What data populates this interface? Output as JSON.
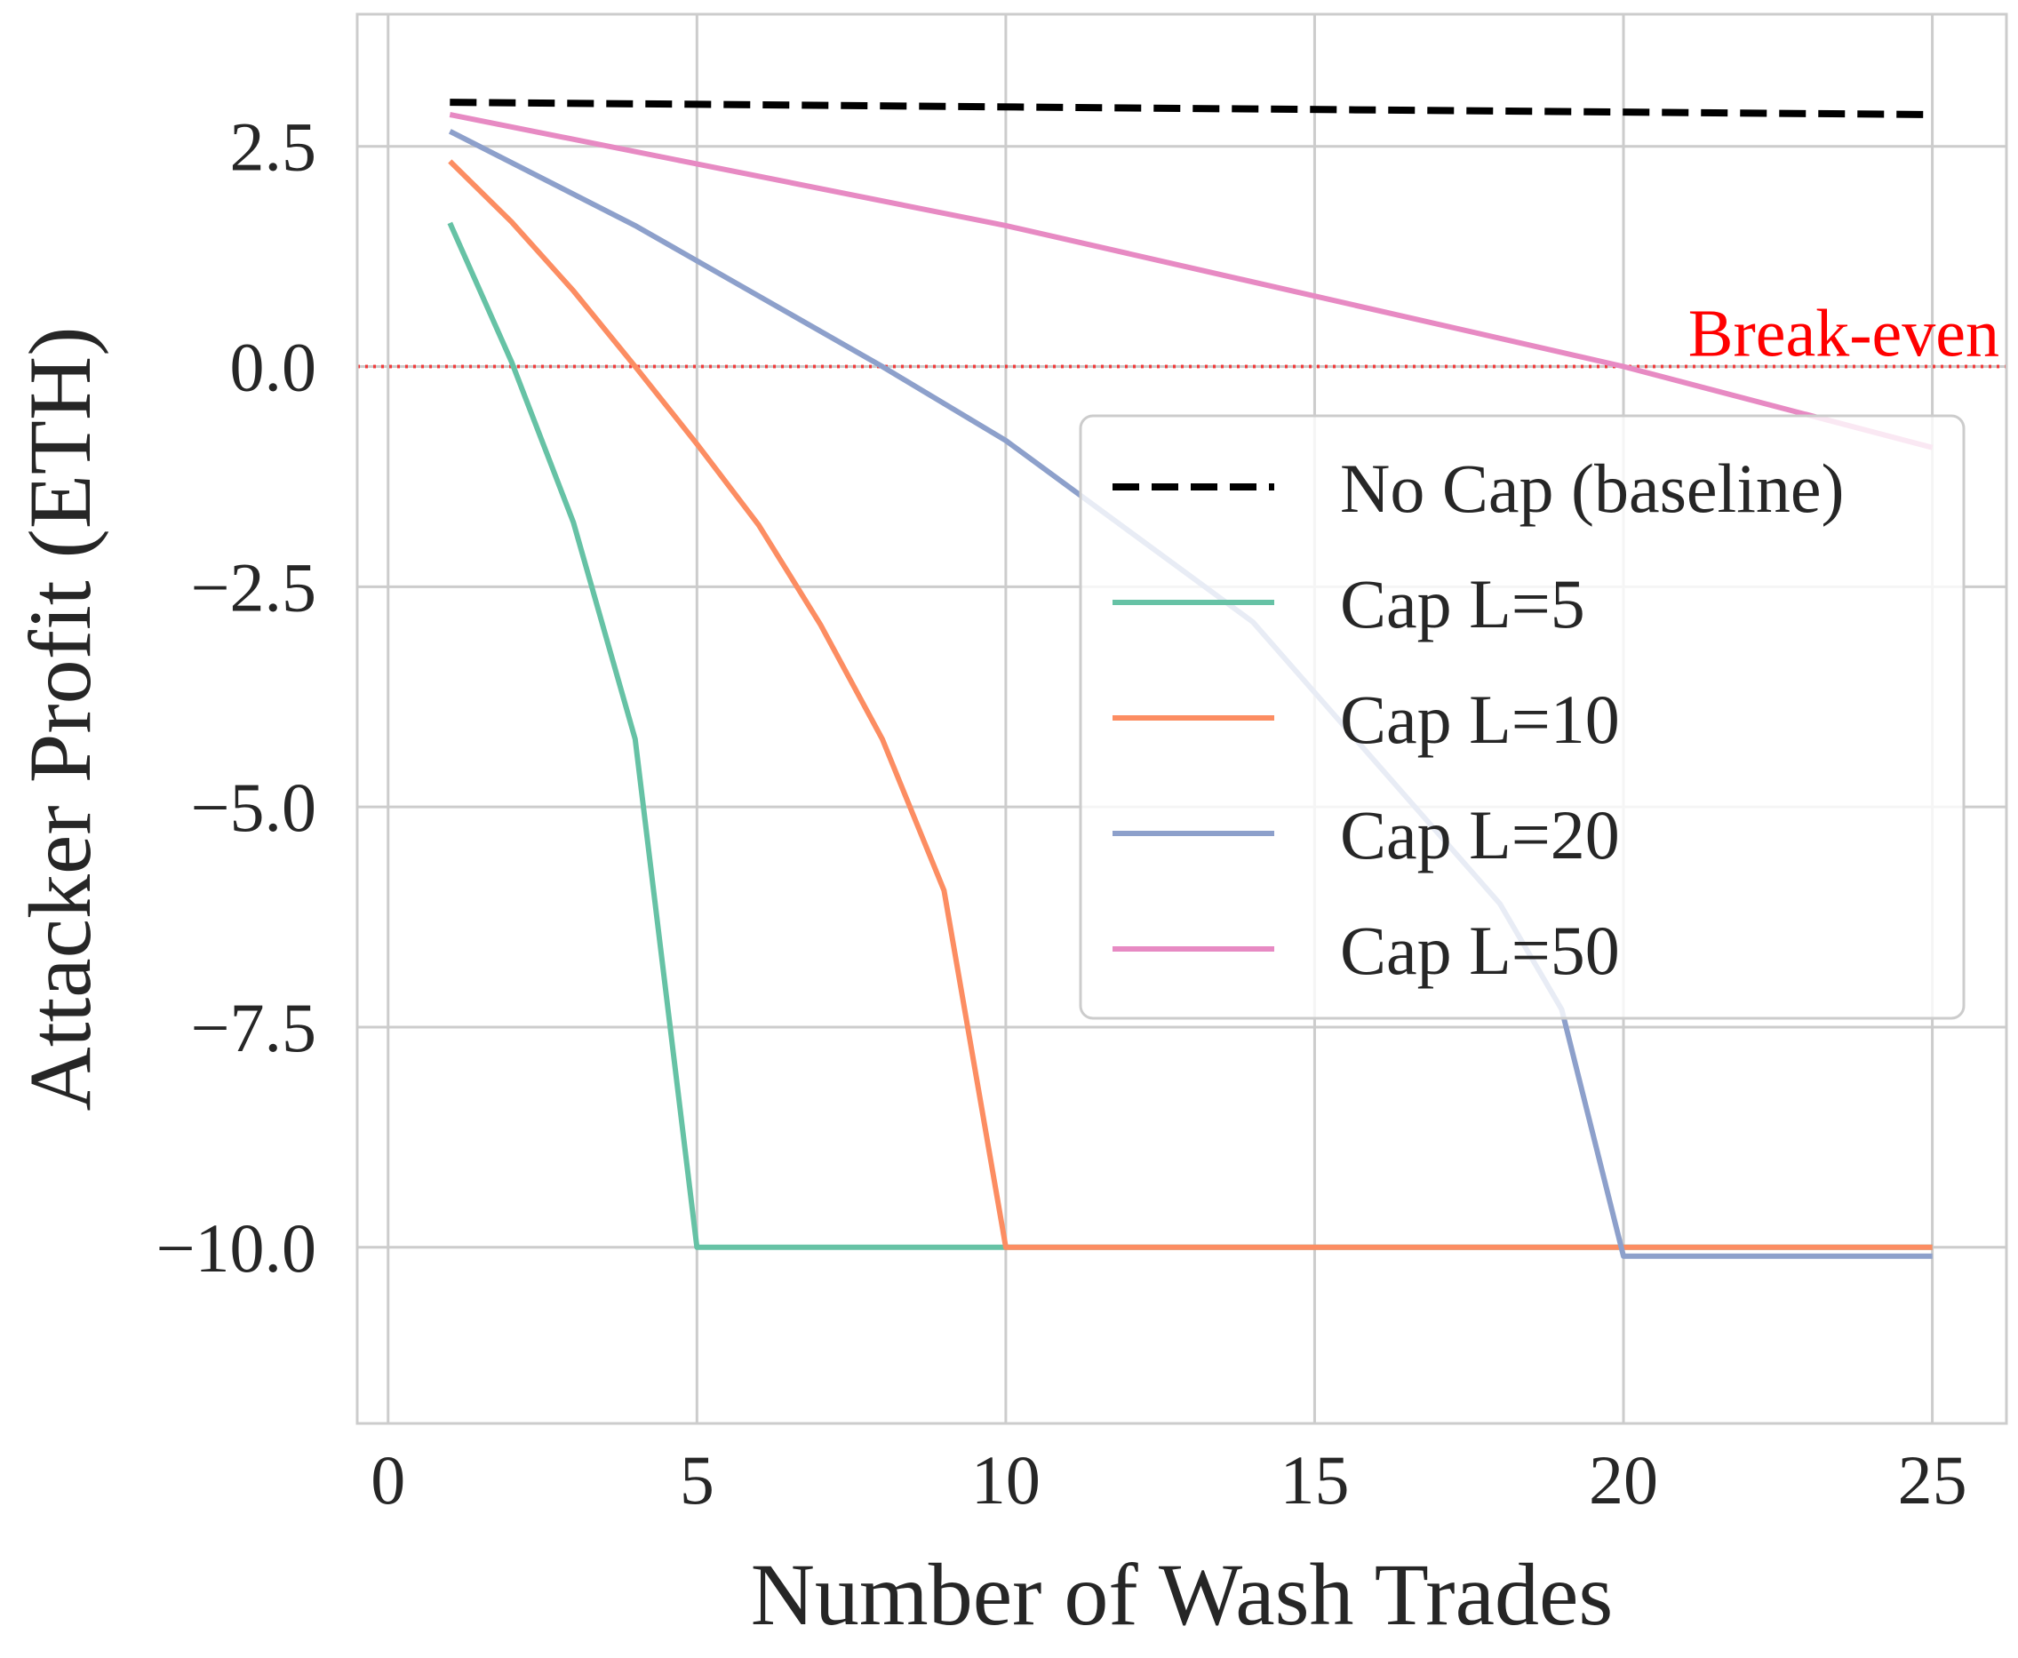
{
  "chart_data": {
    "type": "line",
    "title": "",
    "xlabel": "Number of Wash Trades",
    "ylabel": "Attacker Profit (ETH)",
    "xlim": [
      -0.5,
      26.2
    ],
    "ylim": [
      -12.0,
      4.0
    ],
    "xticks": [
      0,
      5,
      10,
      15,
      20,
      25
    ],
    "xtick_labels": [
      "0",
      "5",
      "10",
      "15",
      "20",
      "25"
    ],
    "yticks": [
      2.5,
      0.0,
      -2.5,
      -5.0,
      -7.5,
      -10.0
    ],
    "ytick_labels": [
      "2.5",
      "0.0",
      "−2.5",
      "−5.0",
      "−7.5",
      "−10.0"
    ],
    "grid": true,
    "legend_position": "center-right",
    "reference_line": {
      "y": 0.0,
      "label": "Break-even",
      "color": "#ff0000"
    },
    "series": [
      {
        "name": "No Cap (baseline)",
        "color": "#000000",
        "style": "dashed",
        "x": [
          1,
          25
        ],
        "y": [
          3.0,
          2.86
        ]
      },
      {
        "name": "Cap L=5",
        "color": "#66c2a5",
        "style": "solid",
        "x": [
          1,
          2,
          3,
          4,
          5,
          25
        ],
        "y": [
          1.63,
          0.05,
          -1.77,
          -4.23,
          -10.0,
          -10.0
        ]
      },
      {
        "name": "Cap L=10",
        "color": "#fc8d62",
        "style": "solid",
        "x": [
          1,
          2,
          3,
          4,
          5,
          6,
          7,
          8,
          9,
          10,
          25
        ],
        "y": [
          2.33,
          1.64,
          0.86,
          0.0,
          -0.88,
          -1.8,
          -2.93,
          -4.23,
          -5.95,
          -10.0,
          -10.0
        ]
      },
      {
        "name": "Cap L=20",
        "color": "#8da0cb",
        "style": "solid",
        "x": [
          1,
          4,
          8,
          10,
          14,
          18,
          19,
          20,
          25
        ],
        "y": [
          2.67,
          1.6,
          0.0,
          -0.84,
          -2.9,
          -6.1,
          -7.3,
          -10.1,
          -10.1
        ]
      },
      {
        "name": "Cap L=50",
        "color": "#e78ac3",
        "style": "solid",
        "x": [
          1,
          10,
          20,
          25
        ],
        "y": [
          2.86,
          1.6,
          0.0,
          -0.92
        ]
      }
    ]
  }
}
